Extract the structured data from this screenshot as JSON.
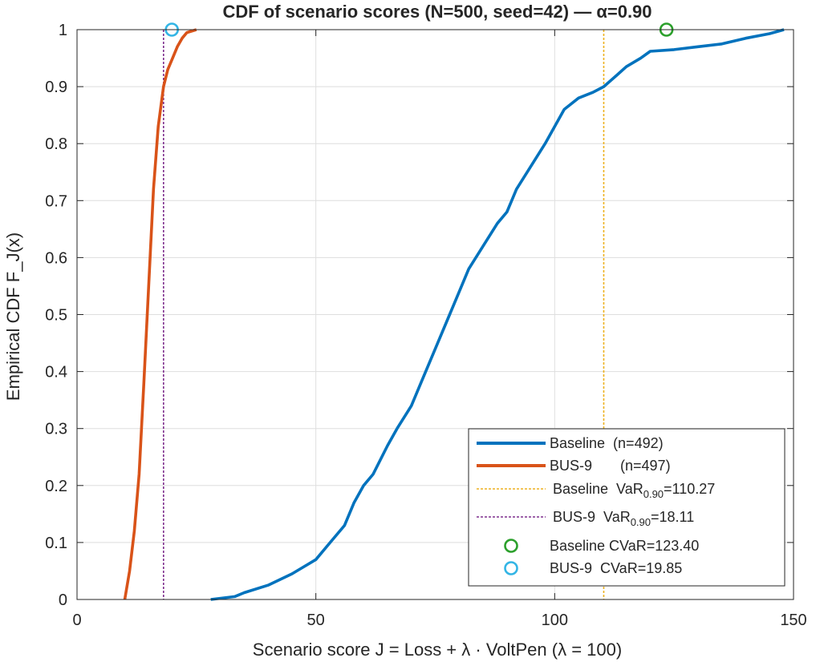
{
  "chart_data": {
    "type": "line",
    "title": "CDF of scenario scores (N=500, seed=42) — α=0.90",
    "xlabel": "Scenario score J = Loss + λ · VoltPen (λ = 100)",
    "ylabel": "Empirical CDF F_J(x)",
    "xlim": [
      0,
      150
    ],
    "ylim": [
      0,
      1
    ],
    "x_ticks": [
      "0",
      "50",
      "100",
      "150"
    ],
    "y_ticks": [
      "0",
      "0.1",
      "0.2",
      "0.3",
      "0.4",
      "0.5",
      "0.6",
      "0.7",
      "0.8",
      "0.9",
      "1"
    ],
    "grid": true,
    "legend_position": "bottom-right",
    "series": [
      {
        "name": "Baseline",
        "legend_label": "Baseline  (n=492)",
        "color": "#0072BD",
        "style": "solid",
        "x": [
          28,
          33,
          35,
          40,
          45,
          50,
          53,
          56,
          58,
          60,
          62,
          65,
          67,
          70,
          72,
          75,
          78,
          80,
          82,
          85,
          88,
          90,
          92,
          95,
          98,
          100,
          102,
          105,
          108,
          110.27,
          113,
          115,
          118,
          120,
          125,
          130,
          135,
          140,
          145,
          148
        ],
        "y": [
          0,
          0.005,
          0.012,
          0.025,
          0.045,
          0.07,
          0.1,
          0.13,
          0.17,
          0.2,
          0.22,
          0.27,
          0.3,
          0.34,
          0.38,
          0.44,
          0.5,
          0.54,
          0.58,
          0.62,
          0.66,
          0.68,
          0.72,
          0.76,
          0.8,
          0.83,
          0.86,
          0.88,
          0.89,
          0.9,
          0.92,
          0.935,
          0.95,
          0.962,
          0.965,
          0.97,
          0.975,
          0.985,
          0.993,
          1
        ]
      },
      {
        "name": "BUS-9",
        "legend_label": "BUS-9       (n=497)",
        "color": "#D95319",
        "style": "solid",
        "x": [
          10,
          11,
          12,
          13,
          14,
          15,
          16,
          17,
          18.11,
          19,
          20,
          21,
          22,
          23,
          25
        ],
        "y": [
          0,
          0.05,
          0.12,
          0.22,
          0.38,
          0.55,
          0.72,
          0.83,
          0.9,
          0.93,
          0.95,
          0.97,
          0.985,
          0.995,
          1
        ]
      }
    ],
    "var_lines": [
      {
        "legend_label": "Baseline  VaR",
        "subscript": "0.90",
        "value_label": "=110.27",
        "x": 110.27,
        "color": "#EDB120"
      },
      {
        "legend_label": "BUS-9  VaR",
        "subscript": "0.90",
        "value_label": "=18.11",
        "x": 18.11,
        "color": "#7E2F8E"
      }
    ],
    "cvar_markers": [
      {
        "legend_label": "Baseline CVaR=123.40",
        "x": 123.4,
        "y": 1,
        "color": "#2CA02C"
      },
      {
        "legend_label": "BUS-9  CVaR=19.85",
        "x": 19.85,
        "y": 1,
        "color": "#33B5E5"
      }
    ]
  }
}
